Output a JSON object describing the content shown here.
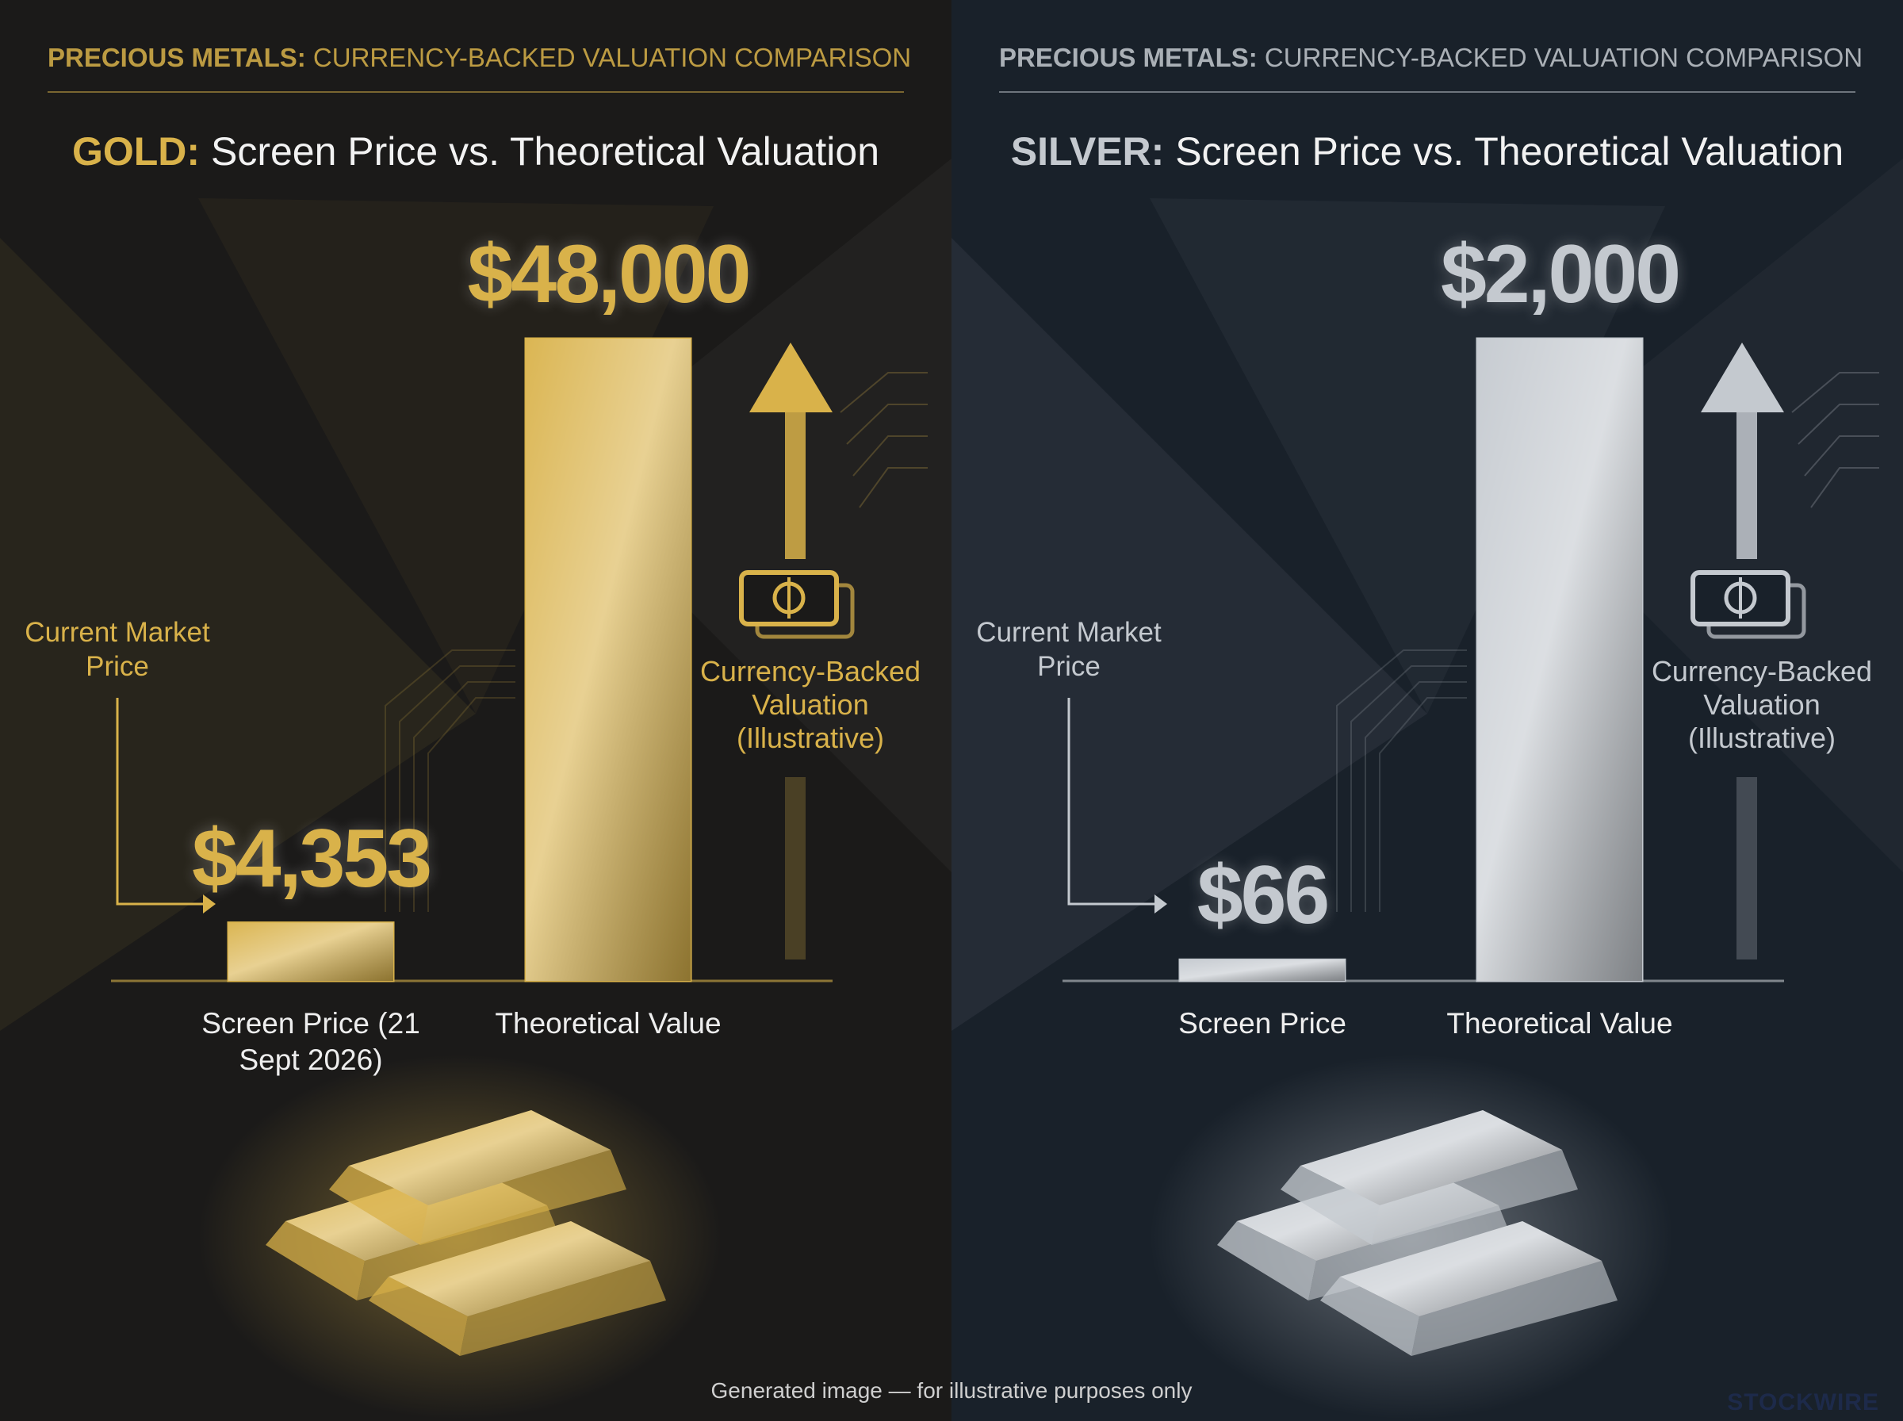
{
  "footer": "Generated image — for illustrative purposes only",
  "watermark": "STOCKWIRE",
  "chart_data": [
    {
      "type": "bar",
      "supertitle_bold": "PRECIOUS METALS:",
      "supertitle": "CURRENCY-BACKED VALUATION COMPARISON",
      "title_bold": "GOLD:",
      "title": "Screen Price vs. Theoretical Valuation",
      "categories": [
        "Screen Price (21 Sept 2026)",
        "Theoretical Value"
      ],
      "values": [
        4353,
        48000
      ],
      "value_labels": [
        "$4,353",
        "$48,000"
      ],
      "annotations": [
        "Current Market Price",
        "Currency-Backed Valuation (Illustrative)"
      ],
      "color": "#d9b24a",
      "background": "#1b1a19"
    },
    {
      "type": "bar",
      "supertitle_bold": "PRECIOUS METALS:",
      "supertitle": "CURRENCY-BACKED VALUATION COMPARISON",
      "title_bold": "SILVER:",
      "title": "Screen Price vs. Theoretical Valuation",
      "categories": [
        "Screen Price",
        "Theoretical Value"
      ],
      "values": [
        66,
        2000
      ],
      "value_labels": [
        "$66",
        "$2,000"
      ],
      "annotations": [
        "Current Market Price",
        "Currency-Backed Valuation (Illustrative)"
      ],
      "color": "#c4c9cf",
      "background": "#19212a"
    }
  ]
}
